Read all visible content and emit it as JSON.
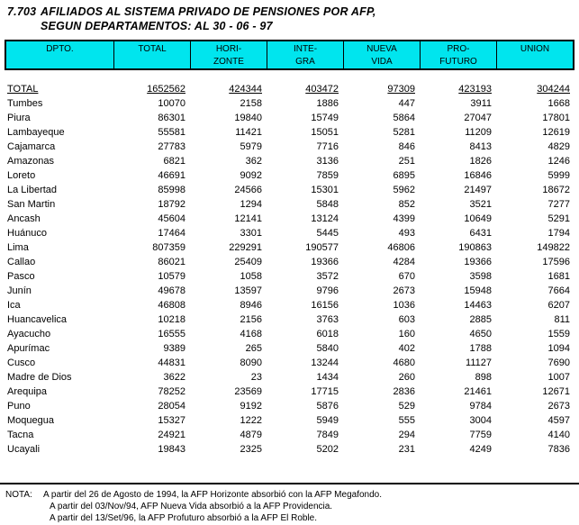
{
  "title": {
    "number": "7.703",
    "line1": "AFILIADOS AL SISTEMA PRIVADO DE PENSIONES POR AFP,",
    "line2": "SEGUN DEPARTAMENTOS: AL 30 - 06 - 97"
  },
  "colors": {
    "header_bg": "#00E5EE",
    "border": "#000000",
    "text": "#000000",
    "page_bg": "#FFFFFF"
  },
  "table": {
    "columns": [
      {
        "line1": "DPTO.",
        "line2": ""
      },
      {
        "line1": "TOTAL",
        "line2": ""
      },
      {
        "line1": "HORI-",
        "line2": "ZONTE"
      },
      {
        "line1": "INTE-",
        "line2": "GRA"
      },
      {
        "line1": "NUEVA",
        "line2": "VIDA"
      },
      {
        "line1": "PRO-",
        "line2": "FUTURO"
      },
      {
        "line1": "UNION",
        "line2": ""
      }
    ],
    "rows": [
      {
        "dept": "TOTAL",
        "underline": true,
        "values": [
          "1652562",
          "424344",
          "403472",
          "97309",
          "423193",
          "304244"
        ]
      },
      {
        "dept": "Tumbes",
        "underline": false,
        "values": [
          "10070",
          "2158",
          "1886",
          "447",
          "3911",
          "1668"
        ]
      },
      {
        "dept": "Piura",
        "underline": false,
        "values": [
          "86301",
          "19840",
          "15749",
          "5864",
          "27047",
          "17801"
        ]
      },
      {
        "dept": "Lambayeque",
        "underline": false,
        "values": [
          "55581",
          "11421",
          "15051",
          "5281",
          "11209",
          "12619"
        ]
      },
      {
        "dept": "Cajamarca",
        "underline": false,
        "values": [
          "27783",
          "5979",
          "7716",
          "846",
          "8413",
          "4829"
        ]
      },
      {
        "dept": "Amazonas",
        "underline": false,
        "values": [
          "6821",
          "362",
          "3136",
          "251",
          "1826",
          "1246"
        ]
      },
      {
        "dept": "Loreto",
        "underline": false,
        "values": [
          "46691",
          "9092",
          "7859",
          "6895",
          "16846",
          "5999"
        ]
      },
      {
        "dept": "La Libertad",
        "underline": false,
        "values": [
          "85998",
          "24566",
          "15301",
          "5962",
          "21497",
          "18672"
        ]
      },
      {
        "dept": "San Martin",
        "underline": false,
        "values": [
          "18792",
          "1294",
          "5848",
          "852",
          "3521",
          "7277"
        ]
      },
      {
        "dept": "Ancash",
        "underline": false,
        "values": [
          "45604",
          "12141",
          "13124",
          "4399",
          "10649",
          "5291"
        ]
      },
      {
        "dept": "Huánuco",
        "underline": false,
        "values": [
          "17464",
          "3301",
          "5445",
          "493",
          "6431",
          "1794"
        ]
      },
      {
        "dept": "Lima",
        "underline": false,
        "values": [
          "807359",
          "229291",
          "190577",
          "46806",
          "190863",
          "149822"
        ]
      },
      {
        "dept": "Callao",
        "underline": false,
        "values": [
          "86021",
          "25409",
          "19366",
          "4284",
          "19366",
          "17596"
        ]
      },
      {
        "dept": "Pasco",
        "underline": false,
        "values": [
          "10579",
          "1058",
          "3572",
          "670",
          "3598",
          "1681"
        ]
      },
      {
        "dept": "Junín",
        "underline": false,
        "values": [
          "49678",
          "13597",
          "9796",
          "2673",
          "15948",
          "7664"
        ]
      },
      {
        "dept": "Ica",
        "underline": false,
        "values": [
          "46808",
          "8946",
          "16156",
          "1036",
          "14463",
          "6207"
        ]
      },
      {
        "dept": "Huancavelica",
        "underline": false,
        "values": [
          "10218",
          "2156",
          "3763",
          "603",
          "2885",
          "811"
        ]
      },
      {
        "dept": "Ayacucho",
        "underline": false,
        "values": [
          "16555",
          "4168",
          "6018",
          "160",
          "4650",
          "1559"
        ]
      },
      {
        "dept": "Apurímac",
        "underline": false,
        "values": [
          "9389",
          "265",
          "5840",
          "402",
          "1788",
          "1094"
        ]
      },
      {
        "dept": "Cusco",
        "underline": false,
        "values": [
          "44831",
          "8090",
          "13244",
          "4680",
          "11127",
          "7690"
        ]
      },
      {
        "dept": "Madre de Dios",
        "underline": false,
        "values": [
          "3622",
          "23",
          "1434",
          "260",
          "898",
          "1007"
        ]
      },
      {
        "dept": "Arequipa",
        "underline": false,
        "values": [
          "78252",
          "23569",
          "17715",
          "2836",
          "21461",
          "12671"
        ]
      },
      {
        "dept": "Puno",
        "underline": false,
        "values": [
          "28054",
          "9192",
          "5876",
          "529",
          "9784",
          "2673"
        ]
      },
      {
        "dept": "Moquegua",
        "underline": false,
        "values": [
          "15327",
          "1222",
          "5949",
          "555",
          "3004",
          "4597"
        ]
      },
      {
        "dept": "Tacna",
        "underline": false,
        "values": [
          "24921",
          "4879",
          "7849",
          "294",
          "7759",
          "4140"
        ]
      },
      {
        "dept": "Ucayali",
        "underline": false,
        "values": [
          "19843",
          "2325",
          "5202",
          "231",
          "4249",
          "7836"
        ]
      }
    ]
  },
  "nota": {
    "label": "NOTA:",
    "lines": [
      "A partir del 26 de Agosto de 1994, la AFP Horizonte absorbió con la AFP Megafondo.",
      "A partir del 03/Nov/94, AFP Nueva Vida absorbió a la AFP Providencia.",
      "A partir del 13/Set/96, la AFP Profuturo absorbió a la AFP El Roble."
    ]
  }
}
